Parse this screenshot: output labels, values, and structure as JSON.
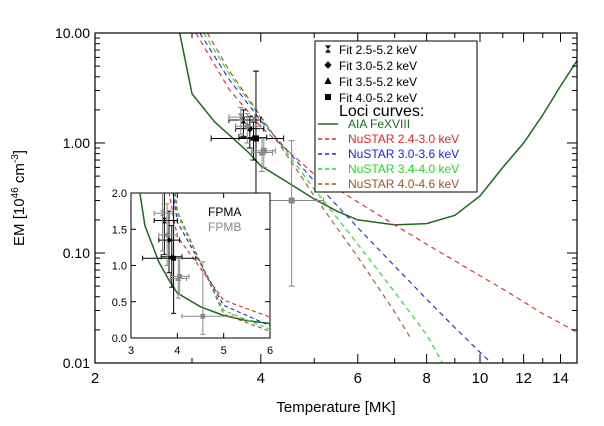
{
  "chart_data": {
    "type": "line",
    "xlabel": "Temperature [MK]",
    "ylabel_main": "EM [10",
    "ylabel_exp": "46",
    "ylabel_unit": " cm",
    "ylabel_unit_exp": "-3",
    "ylabel_close": "]",
    "x_scale": "log",
    "y_scale": "log",
    "xlim": [
      2,
      15
    ],
    "ylim": [
      0.01,
      10
    ],
    "x_ticks": [
      {
        "v": 2,
        "label": "2"
      },
      {
        "v": 4,
        "label": "4"
      },
      {
        "v": 6,
        "label": "6"
      },
      {
        "v": 8,
        "label": "8"
      },
      {
        "v": 10,
        "label": "10"
      },
      {
        "v": 12,
        "label": "12"
      },
      {
        "v": 14,
        "label": "14"
      }
    ],
    "x_minor": [
      3,
      5,
      7,
      9,
      11,
      13,
      15
    ],
    "y_ticks": [
      {
        "v": 10,
        "label": "10.00"
      },
      {
        "v": 1,
        "label": "1.00"
      },
      {
        "v": 0.1,
        "label": "0.10"
      },
      {
        "v": 0.01,
        "label": "0.01"
      }
    ],
    "legend": {
      "placement": "top-right",
      "fit_entries": [
        {
          "marker": "hourglass",
          "label": "Fit 2.5-5.2 keV"
        },
        {
          "marker": "diamond",
          "label": "Fit 3.0-5.2 keV"
        },
        {
          "marker": "triangle",
          "label": "Fit 3.5-5.2 keV"
        },
        {
          "marker": "square",
          "label": "Fit 4.0-5.2 keV"
        }
      ],
      "loci_title": "Loci curves:",
      "loci_entries": [
        {
          "label": "AIA FeXVIII",
          "color": "#1a6b1a",
          "dash": "solid"
        },
        {
          "label": "NuSTAR 2.4-3.0 keV",
          "color": "#e8262c",
          "dash": "dashed"
        },
        {
          "label": "NuSTAR 3.0-3.6 keV",
          "color": "#2222dd",
          "dash": "dashed"
        },
        {
          "label": "NuSTAR 3.4-4.0 keV",
          "color": "#22dd22",
          "dash": "dashed"
        },
        {
          "label": "NuSTAR 4.0-4.6 keV",
          "color": "#a0522d",
          "dash": "dashed"
        }
      ]
    },
    "loci_curves": [
      {
        "name": "AIA FeXVIII",
        "color": "#1a6b1a",
        "dash": "solid",
        "x": [
          2.85,
          3.0,
          3.3,
          3.6,
          3.8,
          4.0,
          4.5,
          5.0,
          5.5,
          6.0,
          7.0,
          8.0,
          9.0,
          10.0,
          11.0,
          12.0,
          13.0,
          14.0,
          15.0
        ],
        "y": [
          10.0,
          2.8,
          1.55,
          1.05,
          0.82,
          0.62,
          0.43,
          0.31,
          0.24,
          0.2,
          0.18,
          0.185,
          0.22,
          0.33,
          0.6,
          1.0,
          1.8,
          3.3,
          5.6
        ]
      },
      {
        "name": "NuSTAR 2.4-3.0 keV",
        "color": "#e8262c",
        "dash": "dashed",
        "x": [
          3.05,
          3.5,
          4.0,
          5.0,
          6.0,
          7.0,
          8.0,
          9.0,
          10.0,
          11.0,
          12.0,
          13.0,
          14.0,
          15.0
        ],
        "y": [
          10.0,
          3.1,
          1.4,
          0.52,
          0.29,
          0.18,
          0.12,
          0.085,
          0.062,
          0.047,
          0.036,
          0.028,
          0.023,
          0.019
        ]
      },
      {
        "name": "NuSTAR 3.0-3.6 keV",
        "color": "#2222dd",
        "dash": "dashed",
        "x": [
          3.1,
          3.5,
          4.0,
          5.0,
          6.0,
          7.0,
          8.0,
          9.0,
          10.0,
          10.6
        ],
        "y": [
          10.0,
          3.8,
          1.6,
          0.45,
          0.17,
          0.076,
          0.038,
          0.021,
          0.0125,
          0.0095
        ]
      },
      {
        "name": "NuSTAR 3.4-4.0 keV",
        "color": "#22dd22",
        "dash": "dashed",
        "x": [
          3.15,
          3.5,
          4.0,
          5.0,
          6.0,
          7.0,
          8.0,
          8.6
        ],
        "y": [
          10.0,
          4.3,
          1.7,
          0.38,
          0.12,
          0.044,
          0.018,
          0.0095
        ]
      },
      {
        "name": "NuSTAR 4.0-4.6 keV",
        "color": "#a0522d",
        "dash": "dashed",
        "x": [
          3.2,
          3.5,
          4.0,
          5.0,
          6.0,
          7.0,
          7.5
        ],
        "y": [
          10.0,
          4.6,
          1.75,
          0.33,
          0.092,
          0.029,
          0.0165
        ]
      }
    ],
    "data_points": [
      {
        "marker": "hourglass",
        "color": "#000000",
        "x": 3.72,
        "y": 1.62,
        "xerr": [
          3.5,
          4.0
        ],
        "yerr": [
          1.15,
          2.0
        ]
      },
      {
        "marker": "diamond",
        "color": "#000000",
        "x": 3.82,
        "y": 1.35,
        "xerr": [
          3.6,
          4.05
        ],
        "yerr": [
          0.9,
          1.75
        ]
      },
      {
        "marker": "triangle",
        "color": "#000000",
        "x": 3.88,
        "y": 1.12,
        "xerr": [
          3.65,
          4.1
        ],
        "yerr": [
          0.7,
          1.55
        ]
      },
      {
        "marker": "square",
        "color": "#000000",
        "x": 3.92,
        "y": 1.1,
        "xerr": [
          3.25,
          4.4
        ],
        "yerr": [
          0.34,
          4.5
        ]
      },
      {
        "marker": "hourglass",
        "color": "#888888",
        "x": 3.68,
        "y": 1.72,
        "xerr": [
          3.5,
          3.9
        ],
        "yerr": [
          1.2,
          2.1
        ]
      },
      {
        "marker": "diamond",
        "color": "#888888",
        "x": 3.78,
        "y": 1.42,
        "xerr": [
          3.6,
          4.0
        ],
        "yerr": [
          1.0,
          1.85
        ]
      },
      {
        "marker": "triangle",
        "color": "#888888",
        "x": 4.02,
        "y": 0.82,
        "xerr": [
          3.85,
          4.2
        ],
        "yerr": [
          0.55,
          1.1
        ]
      },
      {
        "marker": "square",
        "color": "#888888",
        "x": 4.05,
        "y": 0.85,
        "xerr": [
          3.85,
          4.25
        ],
        "yerr": [
          0.6,
          1.1
        ]
      },
      {
        "marker": "square",
        "color": "#888888",
        "x": 4.55,
        "y": 0.3,
        "xerr": [
          4.1,
          5.2
        ],
        "yerr": [
          0.05,
          1.05
        ]
      }
    ],
    "inset": {
      "type": "line",
      "x_scale": "linear",
      "y_scale": "linear",
      "xlim": [
        3,
        6
      ],
      "ylim": [
        0,
        2
      ],
      "x_ticks": [
        {
          "v": 3,
          "label": "3"
        },
        {
          "v": 4,
          "label": "4"
        },
        {
          "v": 5,
          "label": "5"
        },
        {
          "v": 6,
          "label": "6"
        }
      ],
      "y_ticks": [
        {
          "v": 0.0,
          "label": "0.0"
        },
        {
          "v": 0.5,
          "label": "0.5"
        },
        {
          "v": 1.0,
          "label": "1.0"
        },
        {
          "v": 1.5,
          "label": "1.5"
        },
        {
          "v": 2.0,
          "label": "2.0"
        }
      ],
      "labels": [
        {
          "text": "FPMA",
          "color": "#000000"
        },
        {
          "text": "FPMB",
          "color": "#888888"
        }
      ]
    }
  }
}
